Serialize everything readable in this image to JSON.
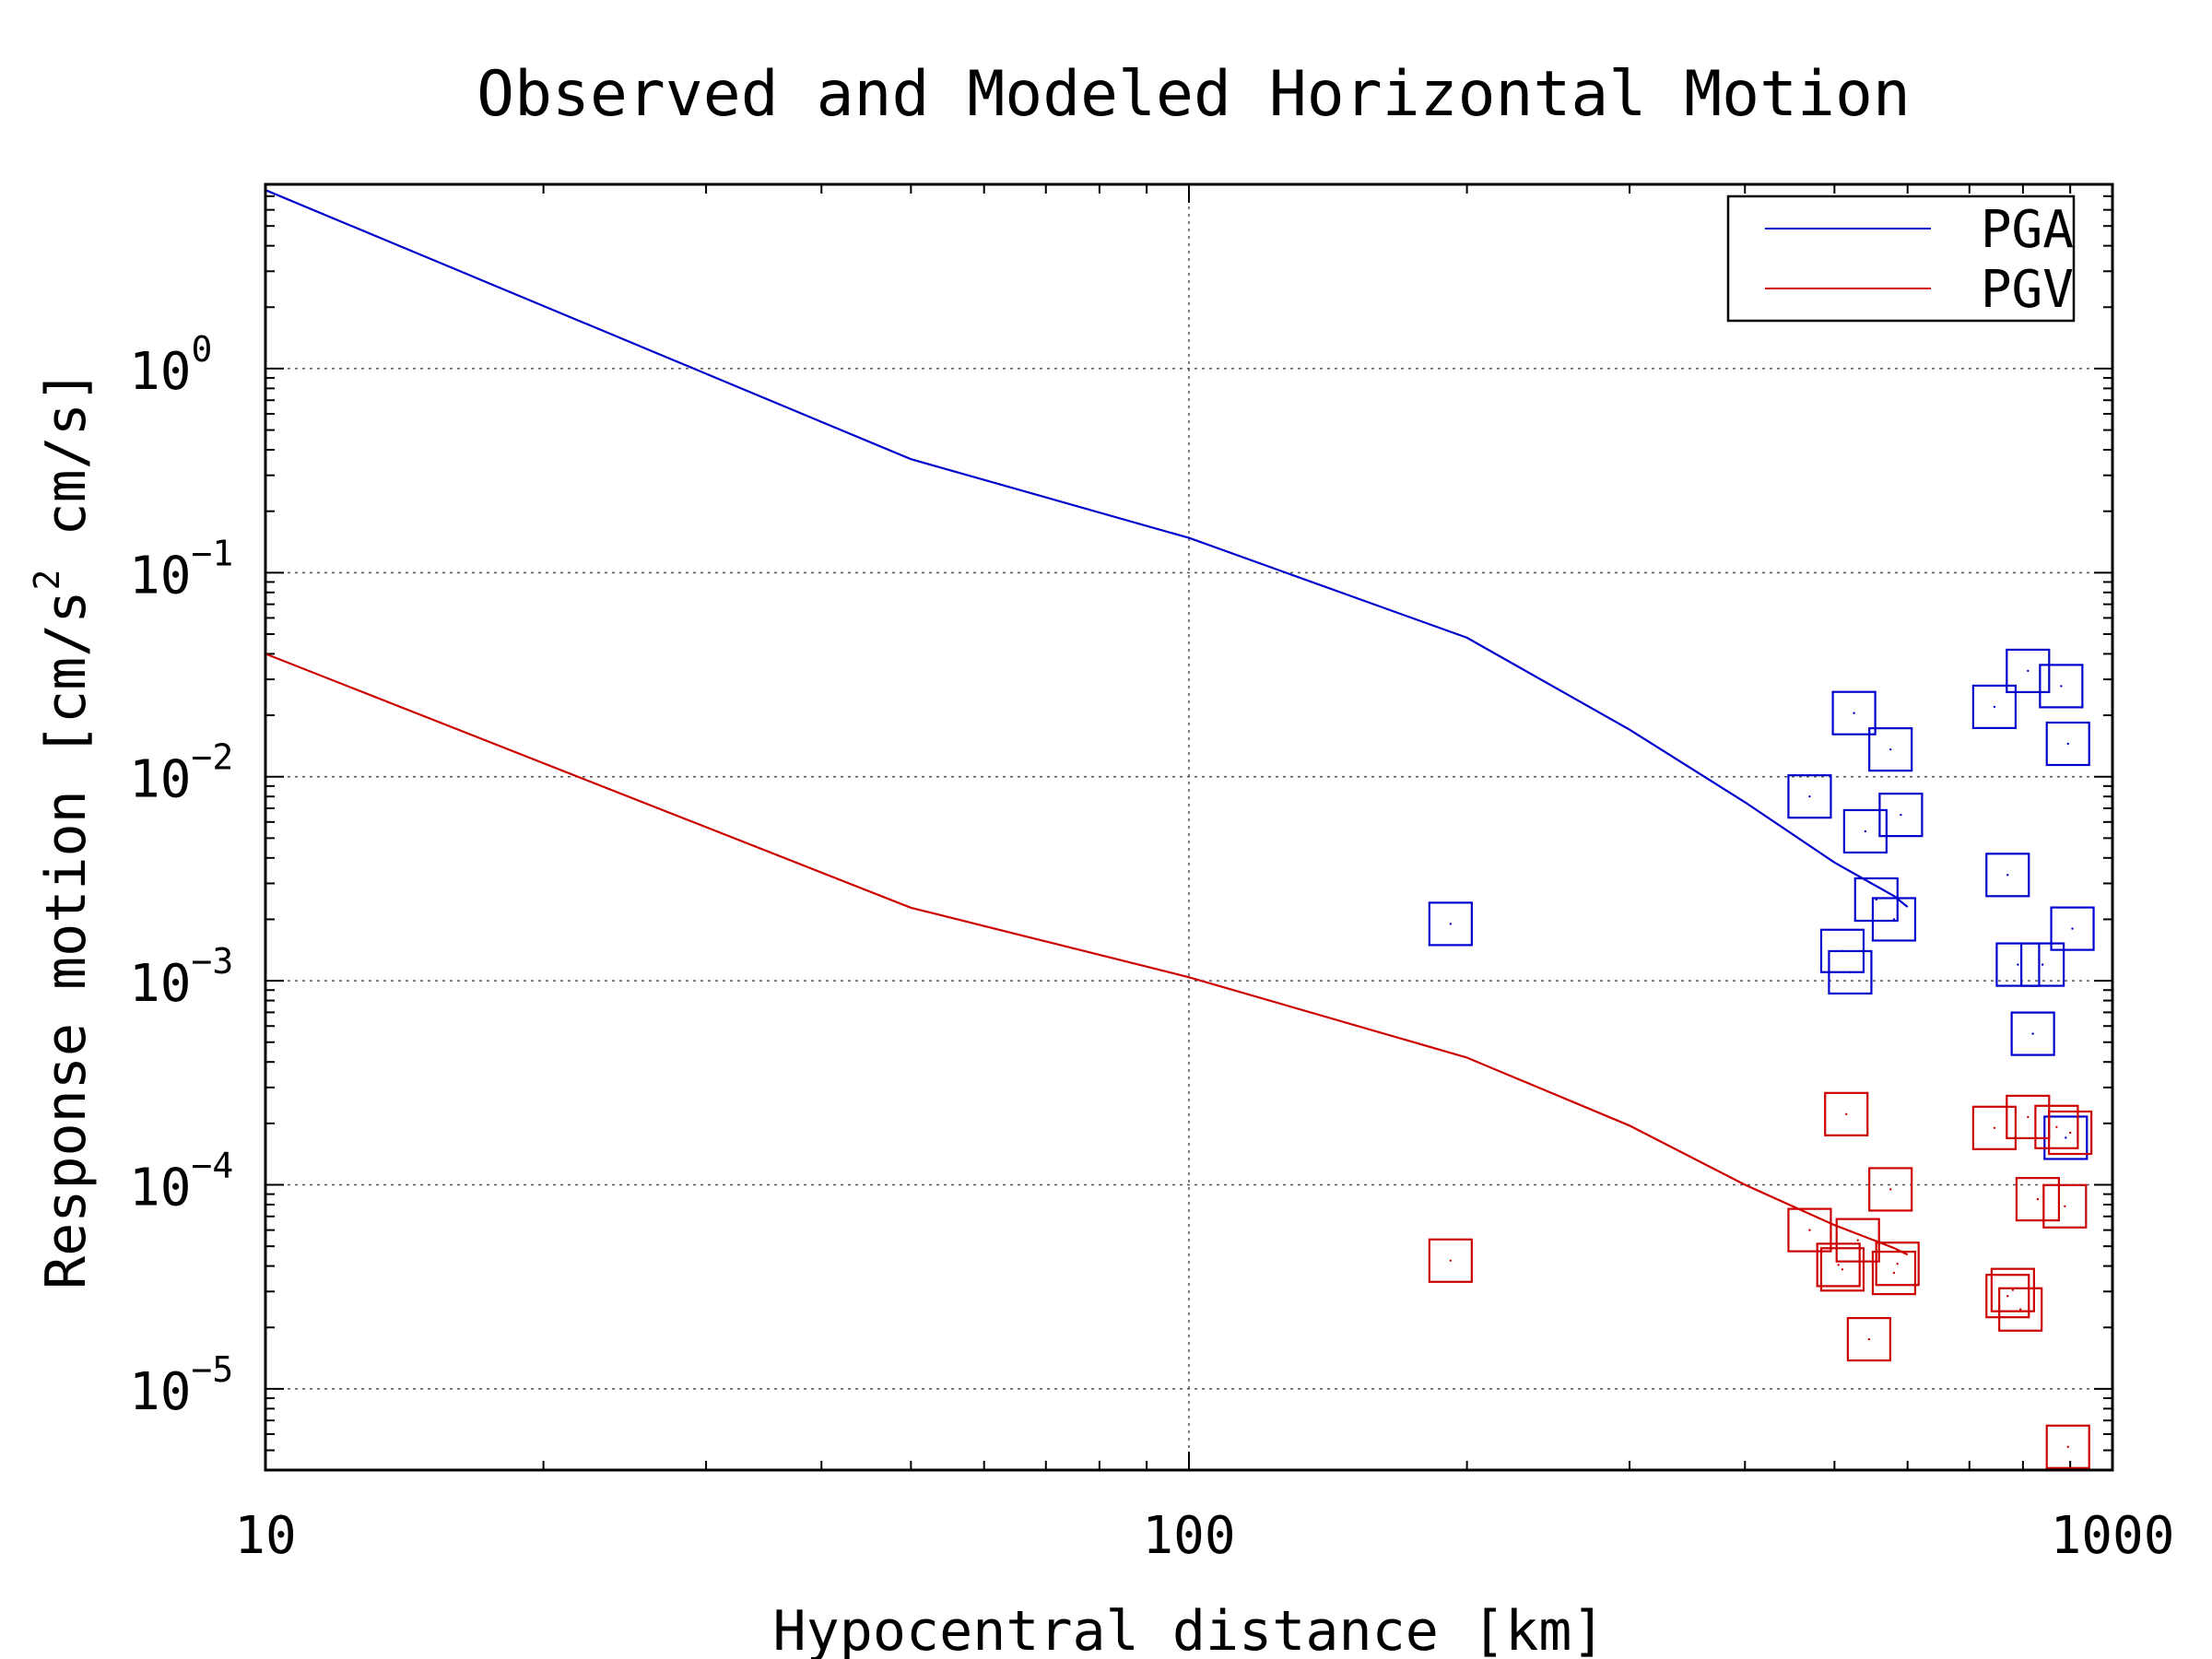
{
  "chart_data": {
    "type": "line+scatter",
    "title": "Observed and Modeled Horizontal Motion",
    "xlabel": "Hypocentral distance [km]",
    "ylabel": "Response motion [cm/s",
    "ylabel_sup": "2",
    "ylabel_tail": "cm/s]",
    "x_scale": "log",
    "y_scale": "log",
    "xlim": [
      10,
      1000
    ],
    "ylim": [
      4e-06,
      8
    ],
    "x_ticks": [
      {
        "value": 10,
        "label": "10"
      },
      {
        "value": 100,
        "label": "100"
      },
      {
        "value": 1000,
        "label": "1000"
      }
    ],
    "y_ticks": [
      {
        "value": 1,
        "base": "10",
        "exp": "0"
      },
      {
        "value": 0.1,
        "base": "10",
        "exp": "−1"
      },
      {
        "value": 0.01,
        "base": "10",
        "exp": "−2"
      },
      {
        "value": 0.001,
        "base": "10",
        "exp": "−3"
      },
      {
        "value": 0.0001,
        "base": "10",
        "exp": "−4"
      },
      {
        "value": 1e-05,
        "base": "10",
        "exp": "−5"
      }
    ],
    "grid": true,
    "legend_position": "top-right",
    "series": [
      {
        "name": "PGA",
        "color": "#0000cc",
        "model": {
          "x": [
            10,
            50,
            100,
            200,
            300,
            400,
            500,
            580,
            600
          ],
          "y": [
            7.5,
            0.36,
            0.148,
            0.048,
            0.017,
            0.0075,
            0.0038,
            0.0026,
            0.0023
          ]
        },
        "observed": {
          "x": [
            192,
            470,
            510,
            520,
            525,
            540,
            555,
            575,
            580,
            590,
            745,
            770,
            790,
            810,
            820,
            840,
            880,
            890,
            895,
            905
          ],
          "y": [
            0.0019,
            0.008,
            0.0014,
            0.0011,
            0.0205,
            0.0054,
            0.0025,
            0.0136,
            0.002,
            0.0065,
            0.022,
            0.0033,
            0.0012,
            0.033,
            0.00055,
            0.0012,
            0.0278,
            0.00017,
            0.0145,
            0.0018
          ]
        }
      },
      {
        "name": "PGV",
        "color": "#cc0000",
        "model": {
          "x": [
            10,
            50,
            100,
            200,
            300,
            400,
            500,
            580,
            600
          ],
          "y": [
            0.04,
            0.00228,
            0.00104,
            0.00042,
            0.000195,
            0.0001,
            6.35e-05,
            4.9e-05,
            4.55e-05
          ]
        },
        "observed": {
          "x": [
            192,
            470,
            505,
            510,
            515,
            530,
            545,
            575,
            580,
            585,
            745,
            770,
            780,
            795,
            810,
            830,
            870,
            888,
            895,
            900
          ],
          "y": [
            4.25e-05,
            6e-05,
            4.05e-05,
            3.85e-05,
            0.000222,
            5.35e-05,
            1.75e-05,
            9.5e-05,
            3.7e-05,
            4.1e-05,
            0.00019,
            2.85e-05,
            3.05e-05,
            2.45e-05,
            0.000215,
            8.5e-05,
            0.000192,
            7.85e-05,
            5.2e-06,
            0.00018
          ]
        }
      }
    ]
  }
}
